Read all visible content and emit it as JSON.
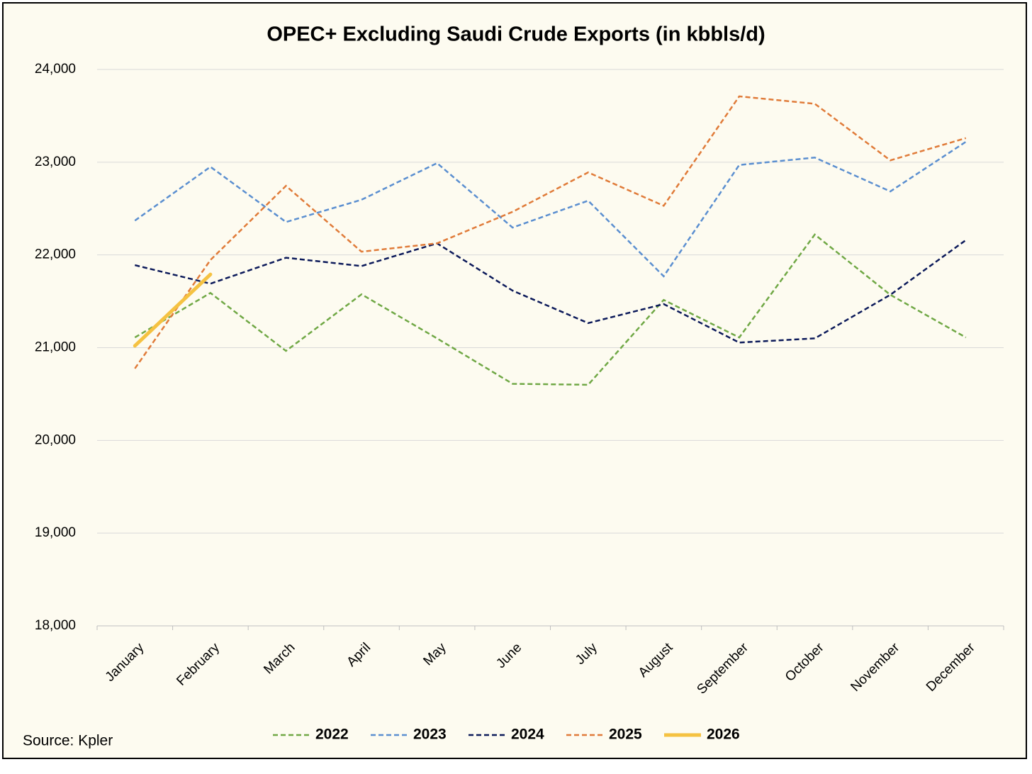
{
  "chart_data": {
    "type": "line",
    "title": "OPEC+ Excluding Saudi Crude Exports (in kbbls/d)",
    "source": "Source: Kpler",
    "categories": [
      "January",
      "February",
      "March",
      "April",
      "May",
      "June",
      "July",
      "August",
      "September",
      "October",
      "November",
      "December"
    ],
    "series": [
      {
        "name": "2022",
        "color": "#70a845",
        "dashed": true,
        "values": [
          21110,
          21590,
          20965,
          21575,
          21100,
          20610,
          20600,
          21515,
          21110,
          22220,
          21570,
          21110
        ]
      },
      {
        "name": "2023",
        "color": "#5b8fd0",
        "dashed": true,
        "values": [
          22370,
          22950,
          22355,
          22595,
          22990,
          22295,
          22585,
          21770,
          22970,
          23050,
          22685,
          23220
        ]
      },
      {
        "name": "2024",
        "color": "#0c1a5a",
        "dashed": true,
        "values": [
          21890,
          21690,
          21970,
          21880,
          22125,
          21615,
          21265,
          21470,
          21055,
          21100,
          21570,
          22160
        ]
      },
      {
        "name": "2025",
        "color": "#e07b39",
        "dashed": true,
        "values": [
          20775,
          21945,
          22745,
          22035,
          22125,
          22465,
          22890,
          22530,
          23710,
          23630,
          23020,
          23260
        ]
      },
      {
        "name": "2026",
        "color": "#f5c242",
        "dashed": false,
        "values": [
          21020,
          21790,
          null,
          null,
          null,
          null,
          null,
          null,
          null,
          null,
          null,
          null
        ]
      }
    ],
    "ylim": [
      18000,
      24000
    ],
    "yticks": [
      {
        "value": 18000,
        "label": "18,000"
      },
      {
        "value": 19000,
        "label": "19,000"
      },
      {
        "value": 20000,
        "label": "20,000"
      },
      {
        "value": 21000,
        "label": "21,000"
      },
      {
        "value": 22000,
        "label": "22,000"
      },
      {
        "value": 23000,
        "label": "23,000"
      },
      {
        "value": 24000,
        "label": "24,000"
      }
    ],
    "grid": true,
    "legend": "bottom"
  }
}
